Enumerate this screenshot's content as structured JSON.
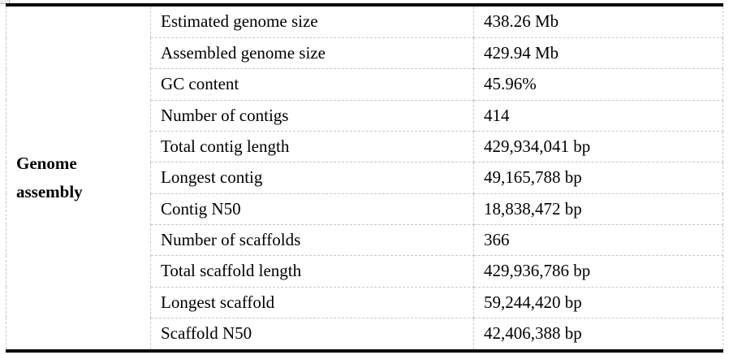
{
  "colors": {
    "background": "#ffffff",
    "text": "#000000",
    "strong_border": "#000000",
    "gridline": "#c8c8c8"
  },
  "table": {
    "row_group_label": "Genome assembly",
    "rows": [
      {
        "label": "Estimated genome size",
        "value": "438.26 Mb"
      },
      {
        "label": "Assembled genome size",
        "value": "429.94 Mb"
      },
      {
        "label": "GC content",
        "value": "45.96%"
      },
      {
        "label": "Number of contigs",
        "value": "414"
      },
      {
        "label": "Total contig length",
        "value": "429,934,041 bp"
      },
      {
        "label": "Longest contig",
        "value": "49,165,788 bp"
      },
      {
        "label": "Contig N50",
        "value": "18,838,472 bp"
      },
      {
        "label": "Number of scaffolds",
        "value": "366"
      },
      {
        "label": "Total scaffold length",
        "value": "429,936,786 bp"
      },
      {
        "label": "Longest scaffold",
        "value": "59,244,420 bp"
      },
      {
        "label": "Scaffold N50",
        "value": "42,406,388 bp"
      }
    ]
  }
}
